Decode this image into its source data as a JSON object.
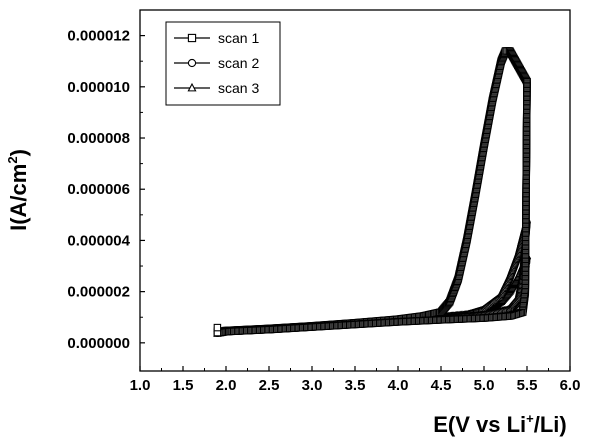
{
  "chart_data": {
    "type": "line",
    "title": "",
    "xlabel": {
      "prefix": "E(V vs Li",
      "sup": "+",
      "suffix": "/Li)"
    },
    "ylabel": {
      "prefix": "I(A/cm",
      "sup": "2",
      "suffix": ")"
    },
    "xlim": [
      1.0,
      6.0
    ],
    "ylim": [
      -1.1e-06,
      1.3e-05
    ],
    "x_ticks": [
      1.0,
      1.5,
      2.0,
      2.5,
      3.0,
      3.5,
      4.0,
      4.5,
      5.0,
      5.5,
      6.0
    ],
    "x_tick_labels": [
      "1.0",
      "1.5",
      "2.0",
      "2.5",
      "3.0",
      "3.5",
      "4.0",
      "4.5",
      "5.0",
      "5.5",
      "6.0"
    ],
    "y_ticks": [
      0.0,
      2e-06,
      4e-06,
      6e-06,
      8e-06,
      1e-05,
      1.2e-05
    ],
    "y_tick_labels": [
      "0.000000",
      "0.000002",
      "0.000004",
      "0.000006",
      "0.000008",
      "0.000010",
      "0.000012"
    ],
    "grid": false,
    "legend_position": "top-left",
    "series": [
      {
        "name": "scan 1",
        "marker": "square",
        "color": "#000000",
        "forward": [
          [
            1.9,
            4e-07
          ],
          [
            2.0,
            4.8e-07
          ],
          [
            2.5,
            5.6e-07
          ],
          [
            3.0,
            6.6e-07
          ],
          [
            3.5,
            7.8e-07
          ],
          [
            4.0,
            9.2e-07
          ],
          [
            4.3,
            1.05e-06
          ],
          [
            4.5,
            1.2e-06
          ],
          [
            4.6,
            1.6e-06
          ],
          [
            4.7,
            2.5e-06
          ],
          [
            4.8,
            4e-06
          ],
          [
            4.9,
            5.8e-06
          ],
          [
            5.0,
            7.7e-06
          ],
          [
            5.1,
            9.5e-06
          ],
          [
            5.2,
            1.1e-05
          ],
          [
            5.25,
            1.14e-05
          ],
          [
            5.3,
            1.14e-05
          ],
          [
            5.4,
            1.08e-05
          ],
          [
            5.5,
            1.02e-05
          ]
        ],
        "reverse": [
          [
            5.5,
            1.02e-05
          ],
          [
            5.49,
            6e-06
          ],
          [
            5.48,
            2e-06
          ],
          [
            5.45,
            1.2e-06
          ],
          [
            5.3,
            1.05e-06
          ],
          [
            5.0,
            9.7e-07
          ],
          [
            4.5,
            9e-07
          ],
          [
            4.0,
            8.2e-07
          ],
          [
            3.5,
            7.2e-07
          ],
          [
            3.0,
            6.2e-07
          ],
          [
            2.5,
            5.2e-07
          ],
          [
            2.0,
            4.4e-07
          ],
          [
            1.9,
            4e-07
          ]
        ]
      },
      {
        "name": "scan 2",
        "marker": "circle",
        "color": "#000000",
        "forward": [
          [
            1.9,
            3.8e-07
          ],
          [
            2.0,
            4.6e-07
          ],
          [
            2.5,
            5.4e-07
          ],
          [
            3.0,
            6.4e-07
          ],
          [
            3.5,
            7.6e-07
          ],
          [
            4.0,
            9e-07
          ],
          [
            4.5,
            1.02e-06
          ],
          [
            4.8,
            1.1e-06
          ],
          [
            5.0,
            1.3e-06
          ],
          [
            5.2,
            1.8e-06
          ],
          [
            5.3,
            2.5e-06
          ],
          [
            5.4,
            3.4e-06
          ],
          [
            5.5,
            4.7e-06
          ]
        ],
        "reverse": [
          [
            5.5,
            4.7e-06
          ],
          [
            5.45,
            2.6e-06
          ],
          [
            5.4,
            1.7e-06
          ],
          [
            5.3,
            1.3e-06
          ],
          [
            5.0,
            1.1e-06
          ],
          [
            4.5,
            9.5e-07
          ],
          [
            4.0,
            8.4e-07
          ],
          [
            3.5,
            7.2e-07
          ],
          [
            3.0,
            6.2e-07
          ],
          [
            2.5,
            5.2e-07
          ],
          [
            2.0,
            4.4e-07
          ],
          [
            1.9,
            3.8e-07
          ]
        ]
      },
      {
        "name": "scan 3",
        "marker": "triangle",
        "color": "#000000",
        "forward": [
          [
            1.9,
            3.6e-07
          ],
          [
            2.0,
            4.4e-07
          ],
          [
            2.5,
            5.2e-07
          ],
          [
            3.0,
            6.2e-07
          ],
          [
            3.5,
            7.4e-07
          ],
          [
            4.0,
            8.8e-07
          ],
          [
            4.5,
            1e-06
          ],
          [
            4.8,
            1.1e-06
          ],
          [
            5.0,
            1.2e-06
          ],
          [
            5.2,
            1.6e-06
          ],
          [
            5.3,
            2e-06
          ],
          [
            5.4,
            2.6e-06
          ],
          [
            5.5,
            3.4e-06
          ]
        ],
        "reverse": [
          [
            5.5,
            3.4e-06
          ],
          [
            5.45,
            2.2e-06
          ],
          [
            5.4,
            1.6e-06
          ],
          [
            5.3,
            1.3e-06
          ],
          [
            5.0,
            1.1e-06
          ],
          [
            4.5,
            9.5e-07
          ],
          [
            4.0,
            8.4e-07
          ],
          [
            3.5,
            7.2e-07
          ],
          [
            3.0,
            6e-07
          ],
          [
            2.5,
            5e-07
          ],
          [
            2.0,
            4.2e-07
          ],
          [
            1.9,
            3.6e-07
          ]
        ]
      }
    ]
  }
}
